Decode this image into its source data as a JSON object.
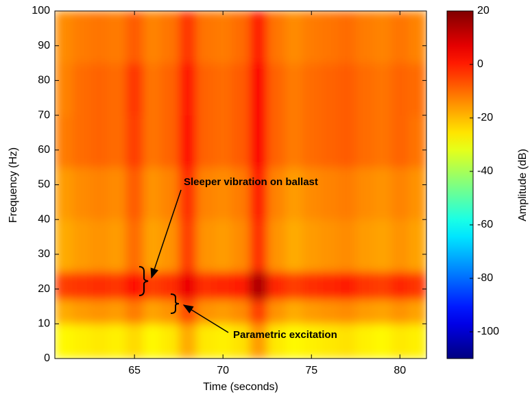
{
  "chart_data": {
    "type": "heatmap",
    "xlabel": "Time (seconds)",
    "ylabel": "Frequency (Hz)",
    "colorbar_label": "Amplitude (dB)",
    "xbins": [
      60.5,
      61.5,
      62.5,
      63.5,
      64.5,
      65.5,
      66.5,
      67.5,
      68.5,
      69.5,
      70.5,
      71.5,
      72.5,
      73.5,
      74.5,
      75.5,
      76.5,
      77.5,
      78.5,
      79.5,
      80.5,
      81.5
    ],
    "ybins": [
      0,
      10,
      17,
      25,
      40,
      55,
      70,
      85,
      100
    ],
    "z": [
      [
        -28,
        -27,
        -26,
        -27,
        -24,
        -28,
        -26,
        -18,
        -26,
        -27,
        -25,
        -16,
        -26,
        -28,
        -27,
        -26,
        -25,
        -27,
        -28,
        -26,
        -27
      ],
      [
        -18,
        -16,
        -15,
        -16,
        -12,
        -17,
        -15,
        -6,
        -15,
        -16,
        -14,
        -4,
        -15,
        -18,
        -16,
        -15,
        -14,
        -16,
        -17,
        -15,
        -17
      ],
      [
        -4,
        -3,
        -2,
        -3,
        2,
        -4,
        -2,
        6,
        -2,
        -1,
        0,
        14,
        -1,
        -4,
        -2,
        -1,
        0,
        -3,
        -4,
        -1,
        -3
      ],
      [
        -18,
        -16,
        -15,
        -16,
        -10,
        -17,
        -15,
        -4,
        -15,
        -16,
        -14,
        -2,
        -15,
        -18,
        -16,
        -15,
        -14,
        -16,
        -17,
        -15,
        -17
      ],
      [
        -16,
        -14,
        -13,
        -14,
        -8,
        -15,
        -13,
        -2,
        -13,
        -14,
        -12,
        0,
        -13,
        -16,
        -14,
        -13,
        -12,
        -14,
        -15,
        -13,
        -15
      ],
      [
        -12,
        -10,
        -9,
        -10,
        -4,
        -11,
        -9,
        2,
        -9,
        -10,
        -8,
        4,
        -9,
        -12,
        -10,
        -9,
        -8,
        -10,
        -11,
        -9,
        -11
      ],
      [
        -13,
        -10,
        -9,
        -10,
        -3,
        -11,
        -9,
        1,
        -9,
        -10,
        -8,
        4,
        -9,
        -12,
        -10,
        -9,
        -8,
        -10,
        -11,
        -9,
        -10
      ],
      [
        -14,
        -12,
        -11,
        -12,
        -8,
        -13,
        -11,
        -3,
        -11,
        -12,
        -10,
        0,
        -11,
        -14,
        -12,
        -11,
        -10,
        -12,
        -13,
        -11,
        -13
      ]
    ],
    "xlim": [
      60.5,
      81.5
    ],
    "xticks": [
      65,
      70,
      75,
      80
    ],
    "ylim": [
      0,
      100
    ],
    "yticks": [
      0,
      10,
      20,
      30,
      40,
      50,
      60,
      70,
      80,
      90,
      100
    ],
    "clim": [
      -110,
      20
    ],
    "cticks": [
      20,
      0,
      -20,
      -40,
      -60,
      -80,
      -100
    ],
    "colormap": "jet",
    "annotations": [
      {
        "text": "Sleeper vibration on ballast",
        "x": 65.6,
        "y": 23
      },
      {
        "text": "Parametric excitation",
        "x": 68,
        "y": 15
      }
    ]
  }
}
